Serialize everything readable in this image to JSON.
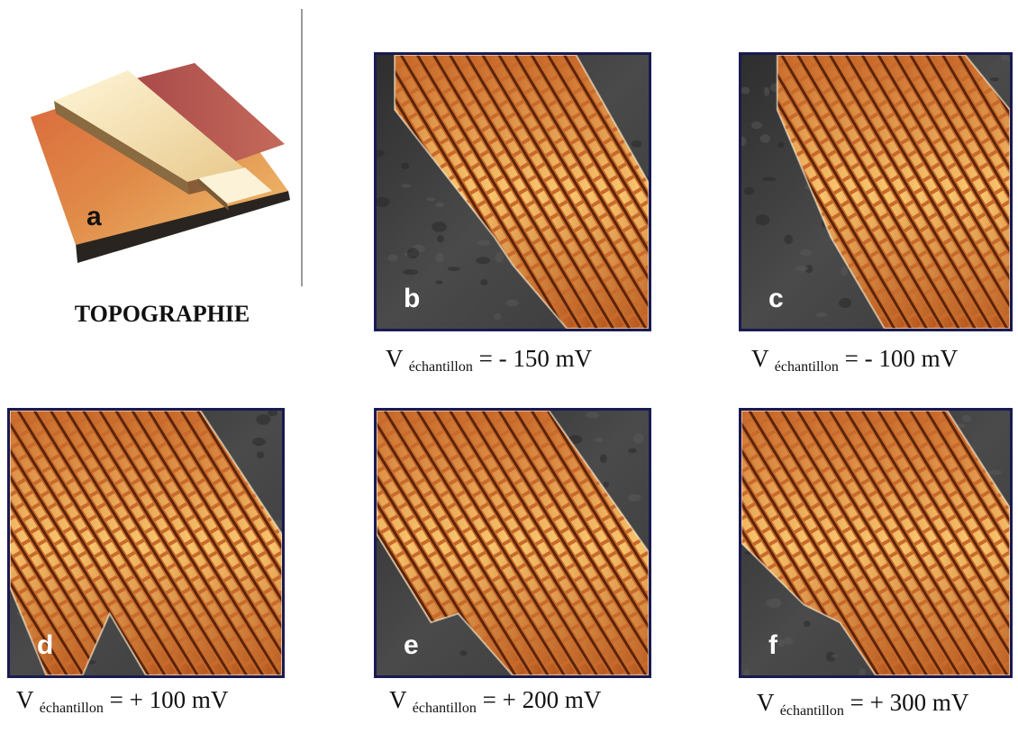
{
  "topography": {
    "letter": "a",
    "caption": "TOPOGRAPHIE"
  },
  "panels": [
    {
      "id": "b",
      "letter": "b",
      "v": "V",
      "sub": "échantillon",
      "value": " = - 150 mV"
    },
    {
      "id": "c",
      "letter": "c",
      "v": "V",
      "sub": "échantillon",
      "value": " = - 100 mV"
    },
    {
      "id": "d",
      "letter": "d",
      "v": "V",
      "sub": "échantillon",
      "value": " = + 100 mV"
    },
    {
      "id": "e",
      "letter": "e",
      "v": "V",
      "sub": "échantillon",
      "value": " = + 200 mV"
    },
    {
      "id": "f",
      "letter": "f",
      "v": "V",
      "sub": "échantillon",
      "value": " = + 300 mV"
    }
  ],
  "colors": {
    "frame": "#1a1a52",
    "substrate": "#3c3c3c",
    "stripe_light": "#f5c36a",
    "stripe_dark": "#8a3a12"
  }
}
